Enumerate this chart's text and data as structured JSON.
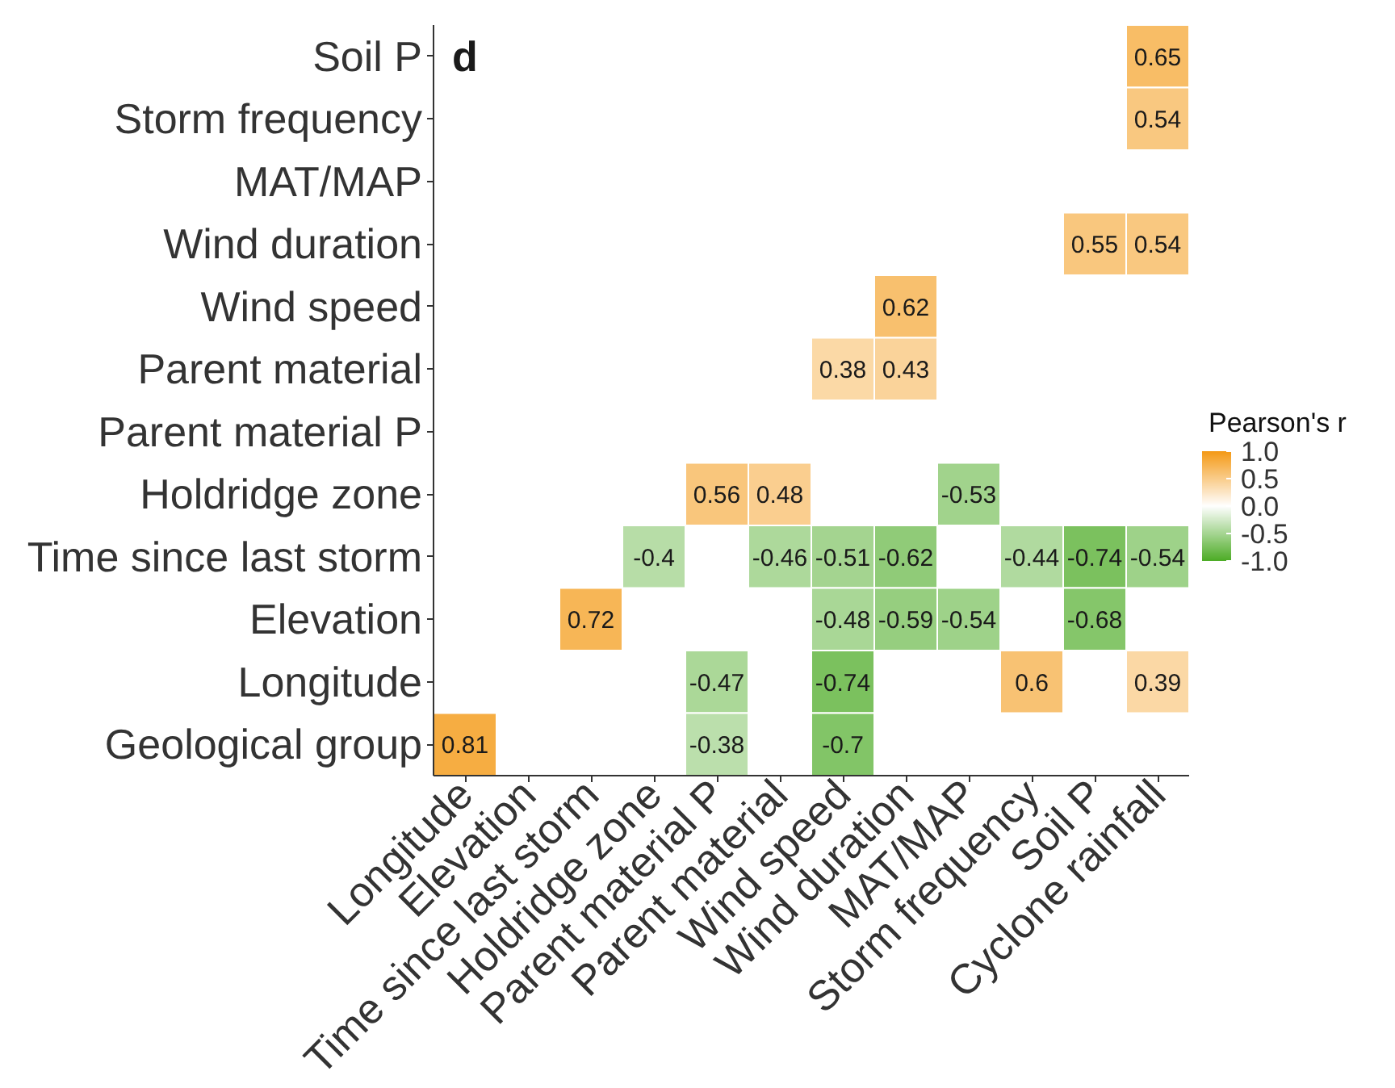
{
  "chart_data": {
    "type": "heatmap",
    "categories": [
      "Longitude",
      "Elevation",
      "Time since last storm",
      "Holdridge zone",
      "Parent material P",
      "Parent material",
      "Wind speed",
      "Wind duration",
      "MAT/MAP",
      "Storm frequency",
      "Soil P",
      "Cyclone rainfall"
    ],
    "y_categories": [
      "Soil P",
      "Storm frequency",
      "MAT/MAP",
      "Wind duration",
      "Wind speed",
      "Parent material",
      "Parent material P",
      "Holdridge zone",
      "Time since last storm",
      "Elevation",
      "Longitude",
      "Geological group"
    ],
    "cells": [
      [
        null,
        null,
        null,
        null,
        null,
        null,
        null,
        null,
        null,
        null,
        null,
        0.65
      ],
      [
        null,
        null,
        null,
        null,
        null,
        null,
        null,
        null,
        null,
        null,
        null,
        0.54
      ],
      [
        null,
        null,
        null,
        null,
        null,
        null,
        null,
        null,
        null,
        null,
        null,
        null
      ],
      [
        null,
        null,
        null,
        null,
        null,
        null,
        null,
        null,
        null,
        null,
        0.55,
        0.54
      ],
      [
        null,
        null,
        null,
        null,
        null,
        null,
        null,
        0.62,
        null,
        null,
        null,
        null
      ],
      [
        null,
        null,
        null,
        null,
        null,
        null,
        0.38,
        0.43,
        null,
        null,
        null,
        null
      ],
      [
        null,
        null,
        null,
        null,
        null,
        null,
        null,
        null,
        null,
        null,
        null,
        null
      ],
      [
        null,
        null,
        null,
        null,
        0.56,
        0.48,
        null,
        null,
        -0.53,
        null,
        null,
        null
      ],
      [
        null,
        null,
        null,
        -0.4,
        null,
        -0.46,
        -0.51,
        -0.62,
        null,
        -0.44,
        -0.74,
        -0.54
      ],
      [
        null,
        null,
        0.72,
        null,
        null,
        null,
        -0.48,
        -0.59,
        -0.54,
        null,
        -0.68,
        null
      ],
      [
        null,
        null,
        null,
        null,
        -0.47,
        null,
        -0.74,
        null,
        null,
        0.6,
        null,
        0.39
      ],
      [
        0.81,
        null,
        null,
        null,
        -0.38,
        null,
        -0.7,
        null,
        null,
        null,
        null,
        null
      ]
    ],
    "clim": [
      -1,
      1
    ],
    "cticks": [
      {
        "value": -1,
        "label": "-1.0"
      },
      -0.5,
      {
        "value": 0,
        "label": "0.0"
      },
      0.5,
      {
        "value": 1,
        "label": "1.0"
      }
    ],
    "clabel": "Pearson's r",
    "data_labels": true,
    "annotations": [
      "d"
    ]
  }
}
